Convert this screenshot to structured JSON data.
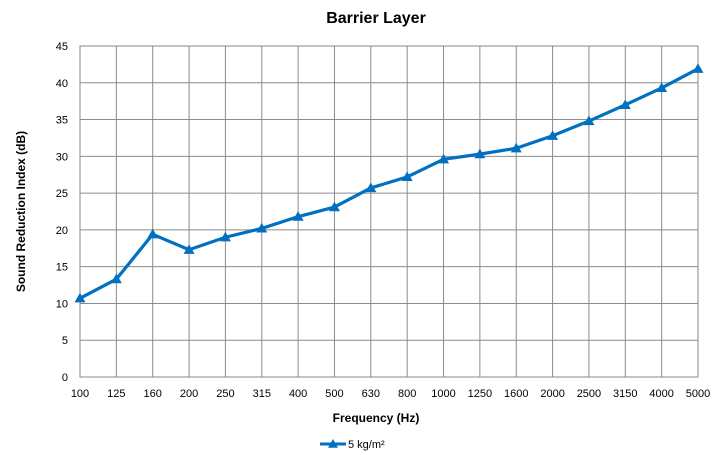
{
  "chart_data": {
    "type": "line",
    "title": "Barrier Layer",
    "xlabel": "Frequency (Hz)",
    "ylabel": "Sound Reduction Index (dB)",
    "categories": [
      "100",
      "125",
      "160",
      "200",
      "250",
      "315",
      "400",
      "500",
      "630",
      "800",
      "1000",
      "1250",
      "1600",
      "2000",
      "2500",
      "3150",
      "4000",
      "5000"
    ],
    "series": [
      {
        "name": "5 kg/m²",
        "color": "#0070C0",
        "marker": "triangle",
        "values": [
          10.7,
          13.3,
          19.4,
          17.3,
          19.0,
          20.2,
          21.8,
          23.1,
          25.7,
          27.2,
          29.6,
          30.3,
          31.1,
          32.8,
          34.8,
          37.0,
          39.3,
          41.9
        ]
      }
    ],
    "ylim": [
      0,
      45
    ],
    "yticks": [
      0,
      5,
      10,
      15,
      20,
      25,
      30,
      35,
      40,
      45
    ],
    "grid": true,
    "legend_position": "bottom"
  }
}
